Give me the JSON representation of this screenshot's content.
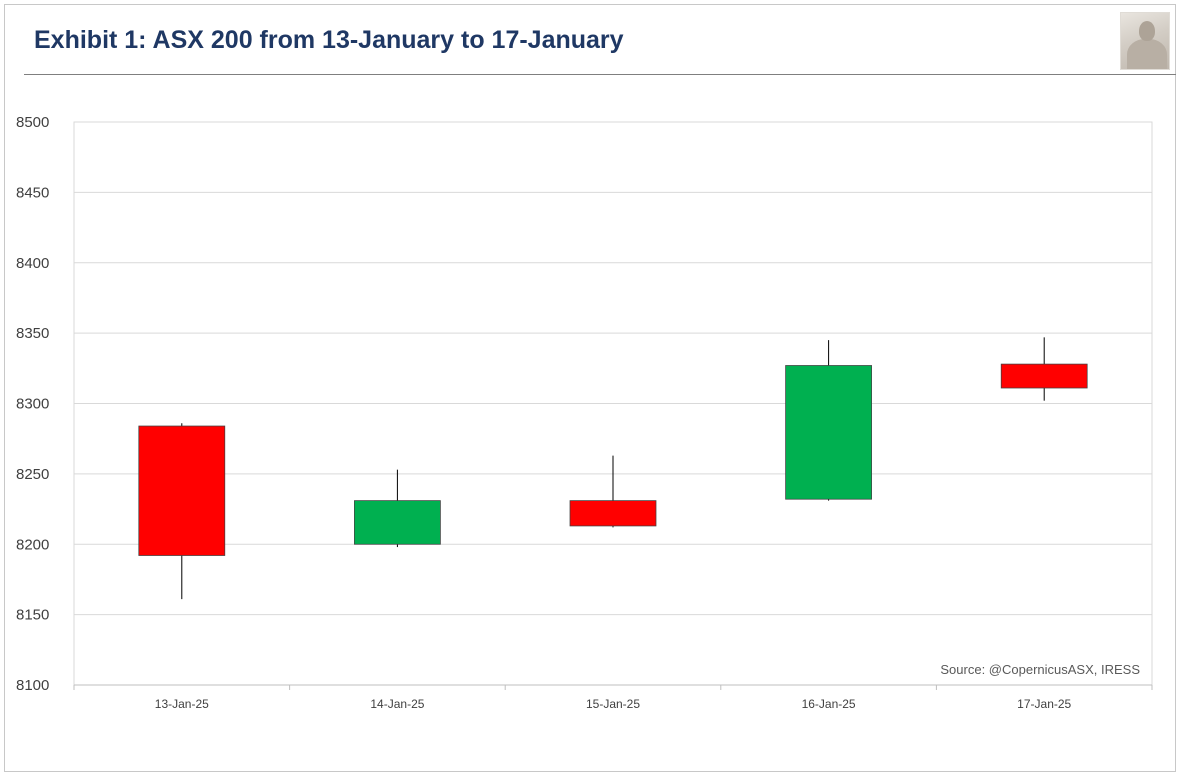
{
  "title": "Exhibit 1: ASX 200 from 13-January to 17-January",
  "source": "Source: @CopernicusASX, IRESS",
  "logo_icon": "copernicus-bust-logo",
  "colors": {
    "title": "#1f3864",
    "up": "#00b050",
    "down": "#ff0000",
    "grid": "#d9d9d9",
    "wick": "#000000"
  },
  "chart_data": {
    "type": "candlestick",
    "categories": [
      "13-Jan-25",
      "14-Jan-25",
      "15-Jan-25",
      "16-Jan-25",
      "17-Jan-25"
    ],
    "series": [
      {
        "open": [
          8284,
          8200,
          8231,
          8232,
          8328
        ],
        "high": [
          8286,
          8253,
          8263,
          8345,
          8347
        ],
        "low": [
          8161,
          8198,
          8212,
          8231,
          8302
        ],
        "close": [
          8192,
          8231,
          8213,
          8327,
          8311
        ]
      }
    ],
    "ylim": [
      8100,
      8500
    ],
    "yticks": [
      8100,
      8150,
      8200,
      8250,
      8300,
      8350,
      8400,
      8450,
      8500
    ],
    "grid": true,
    "legend": "none"
  }
}
